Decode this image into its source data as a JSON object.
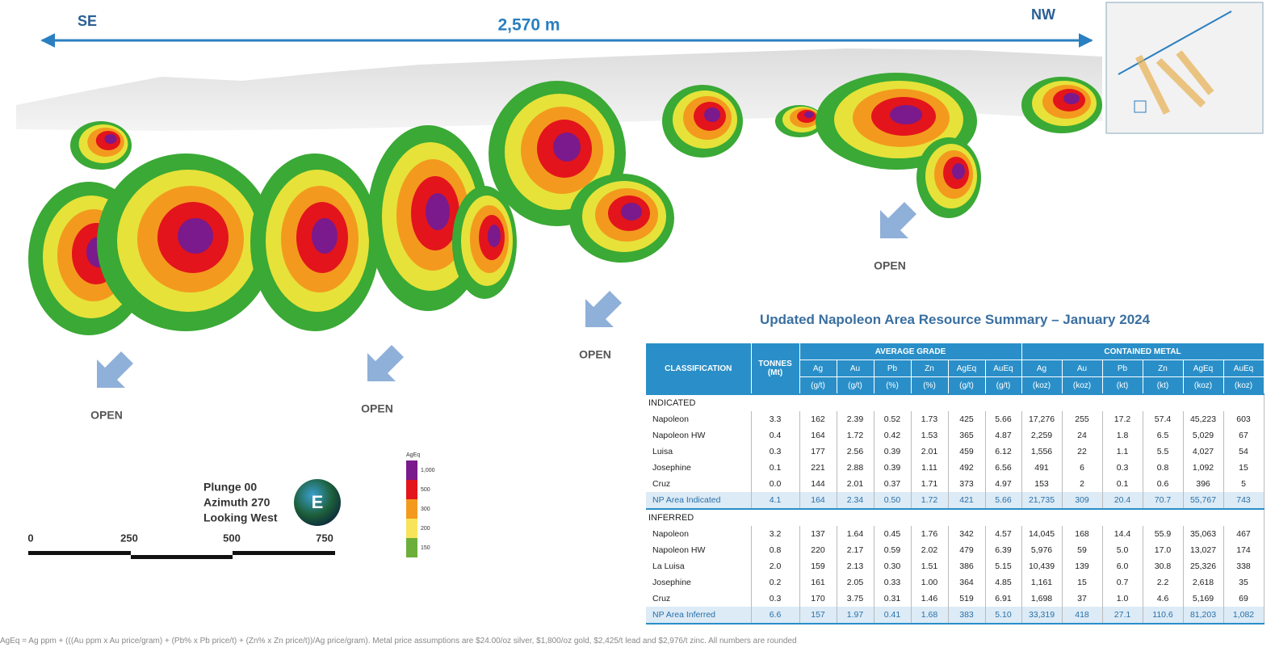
{
  "section": {
    "left_label": "SE",
    "right_label": "NW",
    "length": "2,570 m",
    "open_labels": [
      "OPEN",
      "OPEN",
      "OPEN",
      "OPEN"
    ],
    "view": [
      "Plunge 00",
      "Azimuth 270",
      "Looking West"
    ],
    "compass": "E",
    "scale_labels": [
      "0",
      "250",
      "500",
      "750"
    ],
    "legend": {
      "title": "AgEq",
      "labels": [
        "1,000",
        "500",
        "300",
        "200",
        "150"
      ]
    }
  },
  "table": {
    "title": "Updated Napoleon Area Resource Summary – January 2024",
    "classification_header": "CLASSIFICATION",
    "tonnes_header": "TONNES",
    "tonnes_unit": "(Mt)",
    "group_headers": [
      "AVERAGE GRADE",
      "CONTAINED METAL"
    ],
    "columns": [
      "Ag",
      "Au",
      "Pb",
      "Zn",
      "AgEq",
      "AuEq",
      "Ag",
      "Au",
      "Pb",
      "Zn",
      "AgEq",
      "AuEq"
    ],
    "units": [
      "(g/t)",
      "(g/t)",
      "(%)",
      "(%)",
      "(g/t)",
      "(g/t)",
      "(koz)",
      "(koz)",
      "(kt)",
      "(kt)",
      "(koz)",
      "(koz)"
    ],
    "sections": [
      {
        "name": "INDICATED",
        "rows": [
          [
            "Napoleon",
            "3.3",
            "162",
            "2.39",
            "0.52",
            "1.73",
            "425",
            "5.66",
            "17,276",
            "255",
            "17.2",
            "57.4",
            "45,223",
            "603"
          ],
          [
            "Napoleon HW",
            "0.4",
            "164",
            "1.72",
            "0.42",
            "1.53",
            "365",
            "4.87",
            "2,259",
            "24",
            "1.8",
            "6.5",
            "5,029",
            "67"
          ],
          [
            "Luisa",
            "0.3",
            "177",
            "2.56",
            "0.39",
            "2.01",
            "459",
            "6.12",
            "1,556",
            "22",
            "1.1",
            "5.5",
            "4,027",
            "54"
          ],
          [
            "Josephine",
            "0.1",
            "221",
            "2.88",
            "0.39",
            "1.11",
            "492",
            "6.56",
            "491",
            "6",
            "0.3",
            "0.8",
            "1,092",
            "15"
          ],
          [
            "Cruz",
            "0.0",
            "144",
            "2.01",
            "0.37",
            "1.71",
            "373",
            "4.97",
            "153",
            "2",
            "0.1",
            "0.6",
            "396",
            "5"
          ],
          [
            "NP Area Indicated",
            "4.1",
            "164",
            "2.34",
            "0.50",
            "1.72",
            "421",
            "5.66",
            "21,735",
            "309",
            "20.4",
            "70.7",
            "55,767",
            "743"
          ]
        ]
      },
      {
        "name": "INFERRED",
        "rows": [
          [
            "Napoleon",
            "3.2",
            "137",
            "1.64",
            "0.45",
            "1.76",
            "342",
            "4.57",
            "14,045",
            "168",
            "14.4",
            "55.9",
            "35,063",
            "467"
          ],
          [
            "Napoleon HW",
            "0.8",
            "220",
            "2.17",
            "0.59",
            "2.02",
            "479",
            "6.39",
            "5,976",
            "59",
            "5.0",
            "17.0",
            "13,027",
            "174"
          ],
          [
            "La Luisa",
            "2.0",
            "159",
            "2.13",
            "0.30",
            "1.51",
            "386",
            "5.15",
            "10,439",
            "139",
            "6.0",
            "30.8",
            "25,326",
            "338"
          ],
          [
            "Josephine",
            "0.2",
            "161",
            "2.05",
            "0.33",
            "1.00",
            "364",
            "4.85",
            "1,161",
            "15",
            "0.7",
            "2.2",
            "2,618",
            "35"
          ],
          [
            "Cruz",
            "0.3",
            "170",
            "3.75",
            "0.31",
            "1.46",
            "519",
            "6.91",
            "1,698",
            "37",
            "1.0",
            "4.6",
            "5,169",
            "69"
          ],
          [
            "NP Area Inferred",
            "6.6",
            "157",
            "1.97",
            "0.41",
            "1.68",
            "383",
            "5.10",
            "33,319",
            "418",
            "27.1",
            "110.6",
            "81,203",
            "1,082"
          ]
        ]
      }
    ]
  },
  "footnote": "AgEq = Ag ppm + (((Au ppm x Au price/gram) + (Pb% x Pb price/t) + (Zn% x Zn price/t))/Ag price/gram). Metal price assumptions are $24.00/oz silver, $1,800/oz gold, $2,425/t lead and $2,976/t zinc. All numbers are rounded"
}
